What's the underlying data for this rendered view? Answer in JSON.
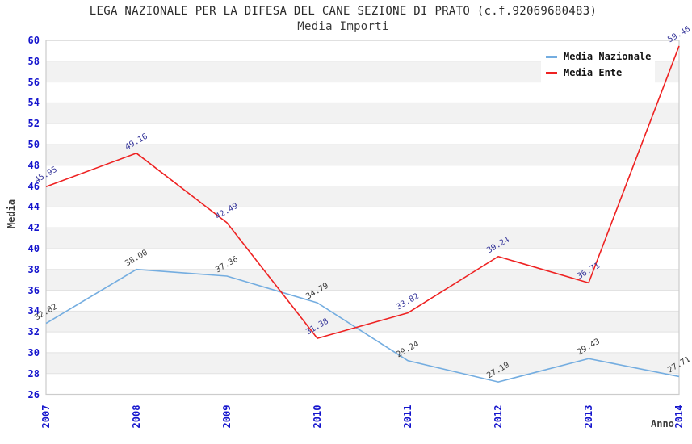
{
  "title": "LEGA NAZIONALE PER LA DIFESA DEL CANE SEZIONE DI PRATO (c.f.92069680483)",
  "subtitle": "Media Importi",
  "colors": {
    "tick_blue": "#1515cd",
    "band_gray": "#f2f2f2",
    "grid_line": "#e2e2e2",
    "plot_border": "#cccccc",
    "axis_label_dark": "#3c3c3c"
  },
  "chart_data": {
    "type": "line",
    "x": [
      "2007",
      "2008",
      "2009",
      "2010",
      "2011",
      "2012",
      "2013",
      "2014"
    ],
    "xlabel": "Anno",
    "ylabel": "Media",
    "ylim": [
      26,
      60
    ],
    "ytick_step": 2,
    "yticks": [
      26,
      28,
      30,
      32,
      34,
      36,
      38,
      40,
      42,
      44,
      46,
      48,
      50,
      52,
      54,
      56,
      58,
      60
    ],
    "grid": "horizontal-bands-alternating",
    "legend_position": "top-right",
    "series": [
      {
        "name": "Media Nazionale",
        "color": "#74ade0",
        "label_color": "#3c3c3c",
        "values": [
          32.82,
          38.0,
          37.36,
          34.79,
          29.24,
          27.19,
          29.43,
          27.71
        ],
        "value_labels": [
          "32.82",
          "38.00",
          "37.36",
          "34.79",
          "29.24",
          "27.19",
          "29.43",
          "27.71"
        ]
      },
      {
        "name": "Media Ente",
        "color": "#ee2222",
        "label_color": "#38389b",
        "values": [
          45.95,
          49.16,
          42.49,
          31.38,
          33.82,
          39.24,
          36.71,
          59.46
        ],
        "value_labels": [
          "45.95",
          "49.16",
          "42.49",
          "31.38",
          "33.82",
          "39.24",
          "36.71",
          "59.46"
        ]
      }
    ]
  }
}
